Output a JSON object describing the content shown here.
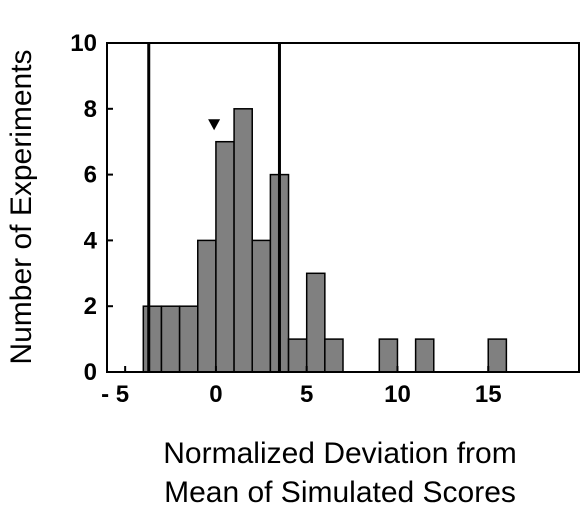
{
  "chart_data": {
    "type": "bar",
    "title": "",
    "xlabel_lines": [
      "Normalized Deviation from",
      "Mean of Simulated Scores"
    ],
    "ylabel": "Number of Experiments",
    "xlim": [
      -6,
      20
    ],
    "ylim": [
      0,
      10
    ],
    "x_ticks": [
      {
        "value": -5,
        "label": "- 5"
      },
      {
        "value": 0,
        "label": "0"
      },
      {
        "value": 5,
        "label": "5"
      },
      {
        "value": 10,
        "label": "10"
      },
      {
        "value": 15,
        "label": "15"
      }
    ],
    "y_ticks": [
      0,
      2,
      4,
      6,
      8,
      10
    ],
    "bin_width": 1,
    "bins": [
      {
        "start": -4,
        "count": 2
      },
      {
        "start": -3,
        "count": 2
      },
      {
        "start": -2,
        "count": 2
      },
      {
        "start": -1,
        "count": 4
      },
      {
        "start": 0,
        "count": 7
      },
      {
        "start": 1,
        "count": 8
      },
      {
        "start": 2,
        "count": 4
      },
      {
        "start": 3,
        "count": 6
      },
      {
        "start": 4,
        "count": 1
      },
      {
        "start": 5,
        "count": 3
      },
      {
        "start": 6,
        "count": 1
      },
      {
        "start": 9,
        "count": 1
      },
      {
        "start": 11,
        "count": 1
      },
      {
        "start": 15,
        "count": 1
      }
    ],
    "vertical_lines": [
      -3.7,
      3.5
    ],
    "marker": {
      "x": -0.1,
      "y": 7.5,
      "shape": "triangle-down"
    },
    "bar_color": "#808080",
    "bar_edge_color": "#000000",
    "grid": false
  }
}
